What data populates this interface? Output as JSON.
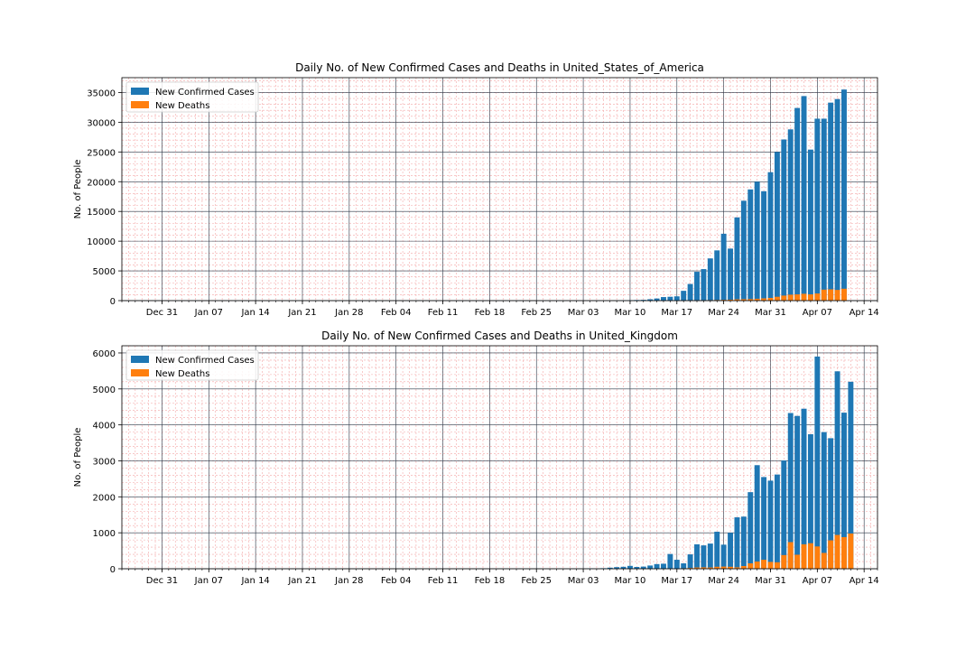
{
  "chart_data": [
    {
      "type": "bar",
      "stacked": "overlay",
      "title": "Daily No. of New Confirmed Cases and Deaths in United_States_of_America",
      "ylabel": "No. of People",
      "xlabel": "",
      "x_start": "2019-12-26",
      "x_end": "2020-04-11",
      "xlim": [
        "2019-12-25",
        "2020-04-16"
      ],
      "ylim": [
        0,
        37500
      ],
      "yticks": [
        0,
        5000,
        10000,
        15000,
        20000,
        25000,
        30000,
        35000
      ],
      "xticks": [
        {
          "date": "2019-12-31",
          "label": "Dec 31"
        },
        {
          "date": "2020-01-07",
          "label": "Jan 07"
        },
        {
          "date": "2020-01-14",
          "label": "Jan 14"
        },
        {
          "date": "2020-01-21",
          "label": "Jan 21"
        },
        {
          "date": "2020-01-28",
          "label": "Jan 28"
        },
        {
          "date": "2020-02-04",
          "label": "Feb 04"
        },
        {
          "date": "2020-02-11",
          "label": "Feb 11"
        },
        {
          "date": "2020-02-18",
          "label": "Feb 18"
        },
        {
          "date": "2020-02-25",
          "label": "Feb 25"
        },
        {
          "date": "2020-03-03",
          "label": "Mar 03"
        },
        {
          "date": "2020-03-10",
          "label": "Mar 10"
        },
        {
          "date": "2020-03-17",
          "label": "Mar 17"
        },
        {
          "date": "2020-03-24",
          "label": "Mar 24"
        },
        {
          "date": "2020-03-31",
          "label": "Mar 31"
        },
        {
          "date": "2020-04-07",
          "label": "Apr 07"
        },
        {
          "date": "2020-04-14",
          "label": "Apr 14"
        }
      ],
      "grid": {
        "major": true,
        "minor": true
      },
      "legend_position": "top-left",
      "series": [
        {
          "name": "New Confirmed Cases",
          "color": "#1f77b4",
          "values": [
            0,
            0,
            0,
            0,
            0,
            0,
            0,
            0,
            0,
            0,
            0,
            0,
            0,
            0,
            0,
            0,
            0,
            0,
            0,
            0,
            0,
            0,
            0,
            0,
            0,
            0,
            0,
            0,
            0,
            0,
            0,
            0,
            0,
            0,
            0,
            0,
            0,
            0,
            0,
            0,
            0,
            0,
            0,
            0,
            0,
            0,
            0,
            0,
            0,
            0,
            0,
            0,
            0,
            0,
            0,
            0,
            0,
            0,
            0,
            0,
            0,
            0,
            0,
            0,
            0,
            0,
            0,
            0,
            0,
            0,
            0,
            0,
            0,
            0,
            50,
            75,
            100,
            130,
            230,
            360,
            600,
            650,
            720,
            1650,
            2800,
            4850,
            5300,
            7100,
            8450,
            11250,
            8750,
            14000,
            16800,
            18700,
            20000,
            18400,
            21600,
            25000,
            27100,
            28800,
            32400,
            34400,
            25400,
            30600,
            30600,
            33300,
            33900,
            35500
          ]
        },
        {
          "name": "New Deaths",
          "color": "#ff7f0e",
          "values": [
            0,
            0,
            0,
            0,
            0,
            0,
            0,
            0,
            0,
            0,
            0,
            0,
            0,
            0,
            0,
            0,
            0,
            0,
            0,
            0,
            0,
            0,
            0,
            0,
            0,
            0,
            0,
            0,
            0,
            0,
            0,
            0,
            0,
            0,
            0,
            0,
            0,
            0,
            0,
            0,
            0,
            0,
            0,
            0,
            0,
            0,
            0,
            0,
            0,
            0,
            0,
            0,
            0,
            0,
            0,
            0,
            0,
            0,
            0,
            0,
            0,
            0,
            0,
            0,
            0,
            0,
            0,
            0,
            0,
            0,
            0,
            0,
            0,
            0,
            0,
            0,
            0,
            0,
            0,
            0,
            10,
            20,
            20,
            25,
            40,
            50,
            60,
            80,
            100,
            120,
            160,
            220,
            240,
            260,
            310,
            380,
            450,
            650,
            850,
            1000,
            1050,
            1150,
            1050,
            1200,
            1850,
            1900,
            1800,
            2000
          ]
        }
      ]
    },
    {
      "type": "bar",
      "stacked": "overlay",
      "title": "Daily No. of New Confirmed Cases and Deaths in United_Kingdom",
      "ylabel": "No. of People",
      "xlabel": "",
      "x_start": "2019-12-26",
      "x_end": "2020-04-11",
      "xlim": [
        "2019-12-25",
        "2020-04-16"
      ],
      "ylim": [
        0,
        6200
      ],
      "yticks": [
        0,
        1000,
        2000,
        3000,
        4000,
        5000,
        6000
      ],
      "xticks": [
        {
          "date": "2019-12-31",
          "label": "Dec 31"
        },
        {
          "date": "2020-01-07",
          "label": "Jan 07"
        },
        {
          "date": "2020-01-14",
          "label": "Jan 14"
        },
        {
          "date": "2020-01-21",
          "label": "Jan 21"
        },
        {
          "date": "2020-01-28",
          "label": "Jan 28"
        },
        {
          "date": "2020-02-04",
          "label": "Feb 04"
        },
        {
          "date": "2020-02-11",
          "label": "Feb 11"
        },
        {
          "date": "2020-02-18",
          "label": "Feb 18"
        },
        {
          "date": "2020-02-25",
          "label": "Feb 25"
        },
        {
          "date": "2020-03-03",
          "label": "Mar 03"
        },
        {
          "date": "2020-03-10",
          "label": "Mar 10"
        },
        {
          "date": "2020-03-17",
          "label": "Mar 17"
        },
        {
          "date": "2020-03-24",
          "label": "Mar 24"
        },
        {
          "date": "2020-03-31",
          "label": "Mar 31"
        },
        {
          "date": "2020-04-07",
          "label": "Apr 07"
        },
        {
          "date": "2020-04-14",
          "label": "Apr 14"
        }
      ],
      "grid": {
        "major": true,
        "minor": true
      },
      "legend_position": "top-left",
      "series": [
        {
          "name": "New Confirmed Cases",
          "color": "#1f77b4",
          "values": [
            0,
            0,
            0,
            0,
            0,
            0,
            0,
            0,
            0,
            0,
            0,
            0,
            0,
            0,
            0,
            0,
            0,
            0,
            0,
            0,
            0,
            0,
            0,
            0,
            0,
            0,
            0,
            0,
            0,
            0,
            0,
            0,
            0,
            0,
            0,
            0,
            0,
            0,
            0,
            0,
            0,
            0,
            0,
            0,
            0,
            0,
            0,
            0,
            0,
            0,
            0,
            0,
            0,
            0,
            0,
            0,
            0,
            0,
            0,
            0,
            0,
            0,
            0,
            0,
            0,
            0,
            0,
            0,
            0,
            12,
            0,
            15,
            30,
            45,
            55,
            80,
            50,
            60,
            90,
            130,
            140,
            410,
            250,
            150,
            400,
            680,
            650,
            700,
            1030,
            670,
            1000,
            1430,
            1450,
            2130,
            2880,
            2550,
            2450,
            2620,
            3010,
            4330,
            4250,
            4450,
            3740,
            5900,
            3800,
            3630,
            5490,
            4340,
            5200
          ]
        },
        {
          "name": "New Deaths",
          "color": "#ff7f0e",
          "values": [
            0,
            0,
            0,
            0,
            0,
            0,
            0,
            0,
            0,
            0,
            0,
            0,
            0,
            0,
            0,
            0,
            0,
            0,
            0,
            0,
            0,
            0,
            0,
            0,
            0,
            0,
            0,
            0,
            0,
            0,
            0,
            0,
            0,
            0,
            0,
            0,
            0,
            0,
            0,
            0,
            0,
            0,
            0,
            0,
            0,
            0,
            0,
            0,
            0,
            0,
            0,
            0,
            0,
            0,
            0,
            0,
            0,
            0,
            0,
            0,
            0,
            0,
            0,
            0,
            0,
            0,
            0,
            0,
            0,
            0,
            0,
            0,
            0,
            0,
            0,
            0,
            0,
            0,
            0,
            0,
            0,
            5,
            0,
            10,
            20,
            35,
            40,
            35,
            55,
            60,
            55,
            40,
            75,
            150,
            200,
            250,
            190,
            180,
            380,
            740,
            390,
            680,
            710,
            620,
            440,
            790,
            940,
            880,
            980
          ]
        }
      ]
    }
  ]
}
